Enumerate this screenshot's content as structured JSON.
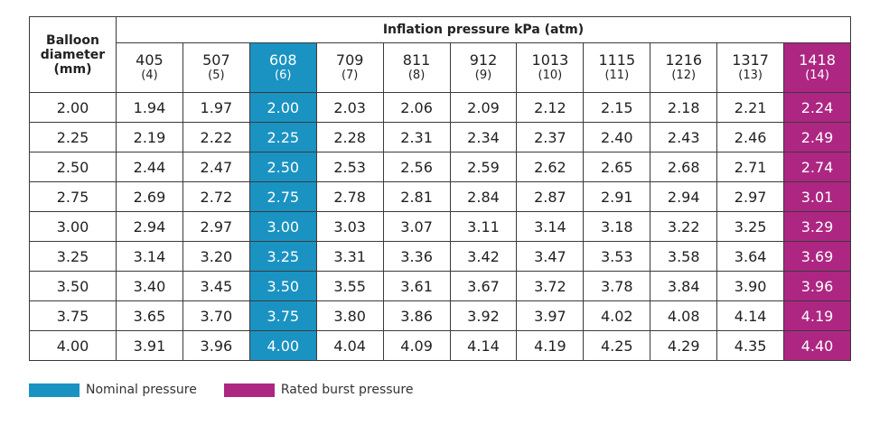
{
  "table": {
    "row_header": "Balloon diameter (mm)",
    "group_header": "Inflation pressure kPa (atm)",
    "columns": [
      {
        "kpa": "405",
        "atm": "(4)"
      },
      {
        "kpa": "507",
        "atm": "(5)"
      },
      {
        "kpa": "608",
        "atm": "(6)",
        "color": "#1a93c2"
      },
      {
        "kpa": "709",
        "atm": "(7)"
      },
      {
        "kpa": "811",
        "atm": "(8)"
      },
      {
        "kpa": "912",
        "atm": "(9)"
      },
      {
        "kpa": "1013",
        "atm": "(10)"
      },
      {
        "kpa": "1115",
        "atm": "(11)"
      },
      {
        "kpa": "1216",
        "atm": "(12)"
      },
      {
        "kpa": "1317",
        "atm": "(13)"
      },
      {
        "kpa": "1418",
        "atm": "(14)",
        "color": "#ad2682"
      }
    ],
    "rows": [
      {
        "diameter": "2.00",
        "values": [
          "1.94",
          "1.97",
          "2.00",
          "2.03",
          "2.06",
          "2.09",
          "2.12",
          "2.15",
          "2.18",
          "2.21",
          "2.24"
        ]
      },
      {
        "diameter": "2.25",
        "values": [
          "2.19",
          "2.22",
          "2.25",
          "2.28",
          "2.31",
          "2.34",
          "2.37",
          "2.40",
          "2.43",
          "2.46",
          "2.49"
        ]
      },
      {
        "diameter": "2.50",
        "values": [
          "2.44",
          "2.47",
          "2.50",
          "2.53",
          "2.56",
          "2.59",
          "2.62",
          "2.65",
          "2.68",
          "2.71",
          "2.74"
        ]
      },
      {
        "diameter": "2.75",
        "values": [
          "2.69",
          "2.72",
          "2.75",
          "2.78",
          "2.81",
          "2.84",
          "2.87",
          "2.91",
          "2.94",
          "2.97",
          "3.01"
        ]
      },
      {
        "diameter": "3.00",
        "values": [
          "2.94",
          "2.97",
          "3.00",
          "3.03",
          "3.07",
          "3.11",
          "3.14",
          "3.18",
          "3.22",
          "3.25",
          "3.29"
        ]
      },
      {
        "diameter": "3.25",
        "values": [
          "3.14",
          "3.20",
          "3.25",
          "3.31",
          "3.36",
          "3.42",
          "3.47",
          "3.53",
          "3.58",
          "3.64",
          "3.69"
        ]
      },
      {
        "diameter": "3.50",
        "values": [
          "3.40",
          "3.45",
          "3.50",
          "3.55",
          "3.61",
          "3.67",
          "3.72",
          "3.78",
          "3.84",
          "3.90",
          "3.96"
        ]
      },
      {
        "diameter": "3.75",
        "values": [
          "3.65",
          "3.70",
          "3.75",
          "3.80",
          "3.86",
          "3.92",
          "3.97",
          "4.02",
          "4.08",
          "4.14",
          "4.19"
        ]
      },
      {
        "diameter": "4.00",
        "values": [
          "3.91",
          "3.96",
          "4.00",
          "4.04",
          "4.09",
          "4.14",
          "4.19",
          "4.25",
          "4.29",
          "4.35",
          "4.40"
        ]
      }
    ]
  },
  "legend": [
    {
      "label": "Nominal pressure",
      "color": "#1a93c2"
    },
    {
      "label": "Rated burst pressure",
      "color": "#ad2682"
    }
  ]
}
